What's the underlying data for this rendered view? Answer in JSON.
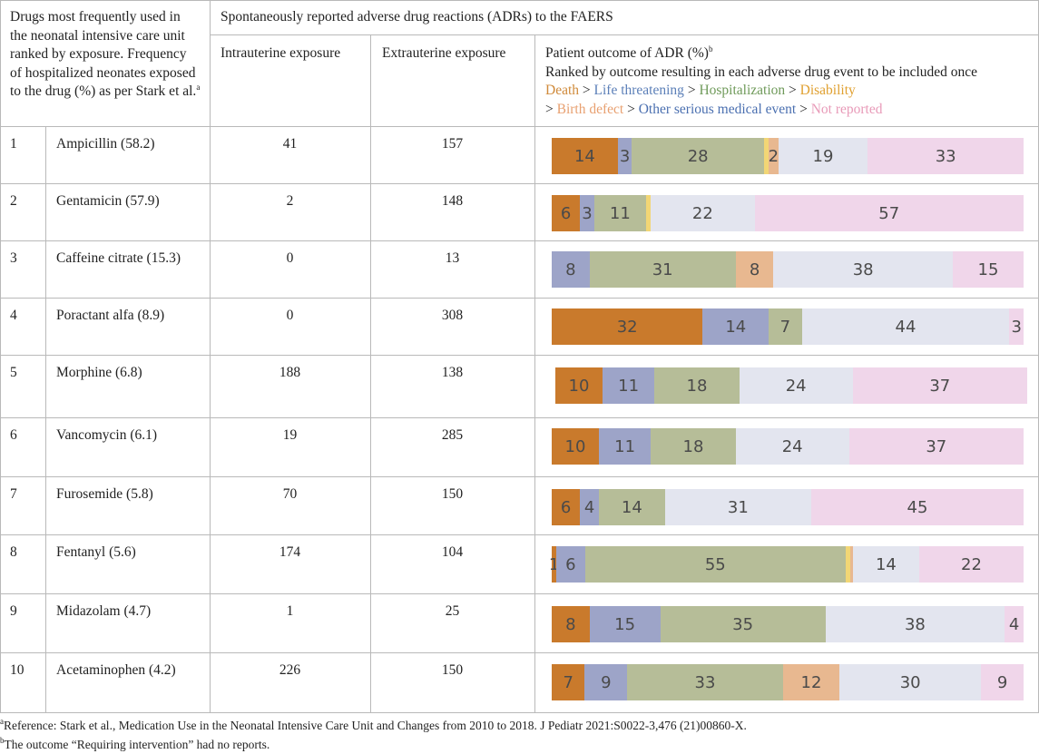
{
  "header": {
    "col1_lines": [
      "Drugs most frequently used in",
      "the neonatal intensive care unit",
      "ranked by exposure. Frequency",
      "of hospitalized neonates exposed",
      "to the drug (%) as per Stark et al."
    ],
    "col1_sup": "a",
    "group_title": "Spontaneously reported adverse drug reactions (ADRs) to the FAERS",
    "intrauterine": "Intrauterine exposure",
    "extrauterine": "Extrauterine exposure",
    "outcome_title": "Patient outcome of ADR (%)",
    "outcome_sup": "b",
    "outcome_subtitle": "Ranked by outcome resulting in each adverse drug event to be included once",
    "legend": {
      "death": "Death",
      "life_threatening": "Life threatening",
      "hospitalization": "Hospitalization",
      "disability": "Disability",
      "birth_defect": "Birth defect",
      "other_serious": "Other serious medical event",
      "not_reported": "Not reported",
      "sep": ">",
      "lead": ">"
    }
  },
  "colors": {
    "death": "#c97a2c",
    "life_threatening": "#9da4c8",
    "hospitalization": "#b6bd98",
    "disability": "#f2d675",
    "birth_defect": "#e8b890",
    "other_serious": "#e3e5ef",
    "not_reported": "#f0d6ea",
    "legend_death": "#d08a3a",
    "legend_life": "#5b7fb8",
    "legend_hosp": "#6f9a5a",
    "legend_disab": "#e0a030",
    "legend_birth": "#e8a070",
    "legend_other": "#4a6fb0",
    "legend_notrep": "#e89ab8"
  },
  "rows": [
    {
      "rank": "1",
      "drug": "Ampicillin (58.2)",
      "intra": "41",
      "extra": "157",
      "segments": [
        [
          "death",
          14,
          "14"
        ],
        [
          "life_threatening",
          3,
          "3"
        ],
        [
          "hospitalization",
          28,
          "28"
        ],
        [
          "disability",
          1,
          ""
        ],
        [
          "birth_defect",
          2,
          "2"
        ],
        [
          "other_serious",
          19,
          "19"
        ],
        [
          "not_reported",
          33,
          "33"
        ]
      ]
    },
    {
      "rank": "2",
      "drug": "Gentamicin (57.9)",
      "intra": "2",
      "extra": "148",
      "segments": [
        [
          "death",
          6,
          "6"
        ],
        [
          "life_threatening",
          3,
          "3"
        ],
        [
          "hospitalization",
          11,
          "11"
        ],
        [
          "disability",
          1,
          ""
        ],
        [
          "other_serious",
          22,
          "22"
        ],
        [
          "not_reported",
          57,
          "57"
        ]
      ]
    },
    {
      "rank": "3",
      "drug": "Caffeine citrate (15.3)",
      "intra": "0",
      "extra": "13",
      "segments": [
        [
          "life_threatening",
          8,
          "8"
        ],
        [
          "hospitalization",
          31,
          "31"
        ],
        [
          "birth_defect",
          8,
          "8"
        ],
        [
          "other_serious",
          38,
          "38"
        ],
        [
          "not_reported",
          15,
          "15"
        ]
      ]
    },
    {
      "rank": "4",
      "drug": "Poractant alfa (8.9)",
      "intra": "0",
      "extra": "308",
      "segments": [
        [
          "death",
          32,
          "32"
        ],
        [
          "life_threatening",
          14,
          "14"
        ],
        [
          "hospitalization",
          7,
          "7"
        ],
        [
          "other_serious",
          44,
          "44"
        ],
        [
          "not_reported",
          3,
          "3"
        ]
      ]
    },
    {
      "rank": "5",
      "drug": "Morphine (6.8)",
      "intra": "188",
      "extra": "138",
      "segments": [
        [
          "death",
          10,
          "10"
        ],
        [
          "life_threatening",
          11,
          "11"
        ],
        [
          "hospitalization",
          18,
          "18"
        ],
        [
          "other_serious",
          24,
          "24"
        ],
        [
          "not_reported",
          37,
          "37"
        ]
      ]
    },
    {
      "rank": "6",
      "drug": "Vancomycin (6.1)",
      "intra": "19",
      "extra": "285",
      "segments": [
        [
          "death",
          10,
          "10"
        ],
        [
          "life_threatening",
          11,
          "11"
        ],
        [
          "hospitalization",
          18,
          "18"
        ],
        [
          "other_serious",
          24,
          "24"
        ],
        [
          "not_reported",
          37,
          "37"
        ]
      ]
    },
    {
      "rank": "7",
      "drug": "Furosemide (5.8)",
      "intra": "70",
      "extra": "150",
      "segments": [
        [
          "death",
          6,
          "6"
        ],
        [
          "life_threatening",
          4,
          "4"
        ],
        [
          "hospitalization",
          14,
          "14"
        ],
        [
          "other_serious",
          31,
          "31"
        ],
        [
          "not_reported",
          45,
          "45"
        ]
      ]
    },
    {
      "rank": "8",
      "drug": "Fentanyl (5.6)",
      "intra": "174",
      "extra": "104",
      "segments": [
        [
          "death",
          1,
          "1"
        ],
        [
          "life_threatening",
          6,
          "6"
        ],
        [
          "hospitalization",
          55,
          "55"
        ],
        [
          "disability",
          1,
          ""
        ],
        [
          "birth_defect",
          0.5,
          ""
        ],
        [
          "other_serious",
          14,
          "14"
        ],
        [
          "not_reported",
          22,
          "22"
        ]
      ]
    },
    {
      "rank": "9",
      "drug": "Midazolam (4.7)",
      "intra": "1",
      "extra": "25",
      "segments": [
        [
          "death",
          8,
          "8"
        ],
        [
          "life_threatening",
          15,
          "15"
        ],
        [
          "hospitalization",
          35,
          "35"
        ],
        [
          "other_serious",
          38,
          "38"
        ],
        [
          "not_reported",
          4,
          "4"
        ]
      ]
    },
    {
      "rank": "10",
      "drug": "Acetaminophen (4.2)",
      "intra": "226",
      "extra": "150",
      "segments": [
        [
          "death",
          7,
          "7"
        ],
        [
          "life_threatening",
          9,
          "9"
        ],
        [
          "hospitalization",
          33,
          "33"
        ],
        [
          "birth_defect",
          12,
          "12"
        ],
        [
          "other_serious",
          30,
          "30"
        ],
        [
          "not_reported",
          9,
          "9"
        ]
      ]
    }
  ],
  "footnotes": {
    "a_sup": "a",
    "a_text": "Reference: Stark et al., Medication Use in the Neonatal Intensive Care Unit and Changes from 2010 to 2018. J Pediatr 2021:S0022-3,476 (21)00860-X.",
    "b_sup": "b",
    "b_text": "The outcome “Requiring intervention” had no reports."
  }
}
